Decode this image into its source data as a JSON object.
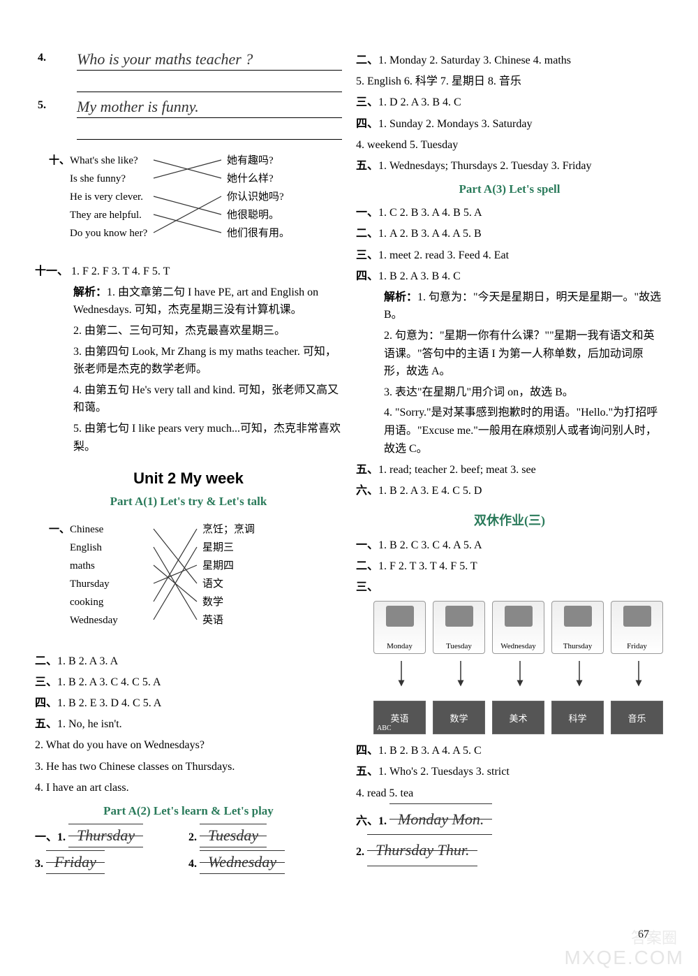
{
  "leftCol": {
    "q4": {
      "num": "4.",
      "text": "Who is your maths teacher ?"
    },
    "q5": {
      "num": "5.",
      "text": "My mother is funny."
    },
    "match10": {
      "prefix": "十、",
      "left": [
        "What's she like?",
        "Is she funny?",
        "He is very clever.",
        "They are helpful.",
        "Do you know her?"
      ],
      "right": [
        "她有趣吗?",
        "她什么样?",
        "你认识她吗?",
        "他很聪明。",
        "他们很有用。"
      ],
      "edges": [
        [
          0,
          1
        ],
        [
          1,
          0
        ],
        [
          2,
          3
        ],
        [
          3,
          4
        ],
        [
          4,
          2
        ]
      ]
    },
    "sec11": {
      "prefix": "十一、",
      "answers": "1. F   2. F   3. T   4. F   5. T",
      "analysisLabel": "解析：",
      "items": [
        "1. 由文章第二句 I have PE, art and English on Wednesdays. 可知，杰克星期三没有计算机课。",
        "2. 由第二、三句可知，杰克最喜欢星期三。",
        "3. 由第四句 Look, Mr Zhang is my maths teacher. 可知，张老师是杰克的数学老师。",
        "4. 由第五句 He's very tall and kind. 可知，张老师又高又和蔼。",
        "5. 由第七句 I like pears very much...可知，杰克非常喜欢梨。"
      ]
    },
    "unit2": {
      "title": "Unit 2   My week"
    },
    "partA1": {
      "title": "Part A(1)   Let's try & Let's talk",
      "match1": {
        "prefix": "一、",
        "left": [
          "Chinese",
          "English",
          "maths",
          "Thursday",
          "cooking",
          "Wednesday"
        ],
        "right": [
          "烹饪；烹调",
          "星期三",
          "星期四",
          "语文",
          "数学",
          "英语"
        ],
        "edges": [
          [
            0,
            3
          ],
          [
            1,
            5
          ],
          [
            2,
            4
          ],
          [
            3,
            2
          ],
          [
            4,
            0
          ],
          [
            5,
            1
          ]
        ]
      },
      "sec2": {
        "prefix": "二、",
        "answers": "1. B   2. A   3. A"
      },
      "sec3": {
        "prefix": "三、",
        "answers": "1. B   2. A   3. C   4. C   5. A"
      },
      "sec4": {
        "prefix": "四、",
        "answers": "1. B   2. E   3. D   4. C   5. A"
      },
      "sec5": {
        "prefix": "五、",
        "items": [
          "1. No, he isn't.",
          "2. What do you have on Wednesdays?",
          "3. He has two Chinese classes on Thursdays.",
          "4. I have an art class."
        ]
      }
    },
    "partA2": {
      "title": "Part A(2)   Let's learn & Let's play",
      "sec1": {
        "prefix": "一、",
        "fills": [
          {
            "num": "1.",
            "text": "Thursday"
          },
          {
            "num": "2.",
            "text": "Tuesday"
          },
          {
            "num": "3.",
            "text": "Friday"
          },
          {
            "num": "4.",
            "text": "Wednesday"
          }
        ]
      }
    }
  },
  "rightCol": {
    "sec2": {
      "prefix": "二、",
      "answers": "1. Monday   2. Saturday   3. Chinese   4. maths",
      "line2": "5. English   6. 科学   7. 星期日   8. 音乐"
    },
    "sec3": {
      "prefix": "三、",
      "answers": "1. D   2. A   3. B   4. C"
    },
    "sec4": {
      "prefix": "四、",
      "answers": "1. Sunday   2. Mondays   3. Saturday",
      "line2": "4. weekend   5. Tuesday"
    },
    "sec5": {
      "prefix": "五、",
      "answers": "1. Wednesdays; Thursdays   2. Tuesday   3. Friday"
    },
    "partA3": {
      "title": "Part A(3)   Let's spell",
      "s1": {
        "prefix": "一、",
        "answers": "1. C   2. B   3. A   4. B   5. A"
      },
      "s2": {
        "prefix": "二、",
        "answers": "1. A   2. B   3. A   4. A   5. B"
      },
      "s3": {
        "prefix": "三、",
        "answers": "1. meet   2. read   3. Feed   4. Eat"
      },
      "s4": {
        "prefix": "四、",
        "answers": "1. B   2. A   3. B   4. C",
        "analysisLabel": "解析：",
        "items": [
          "1. 句意为：\"今天是星期日，明天是星期一。\"故选 B。",
          "2. 句意为：\"星期一你有什么课？\"\"星期一我有语文和英语课。\"答句中的主语 I 为第一人称单数，后加动词原形，故选 A。",
          "3. 表达\"在星期几\"用介词 on，故选 B。",
          "4. \"Sorry.\"是对某事感到抱歉时的用语。\"Hello.\"为打招呼用语。\"Excuse me.\"一般用在麻烦别人或者询问别人时，故选 C。"
        ]
      },
      "s5": {
        "prefix": "五、",
        "answers": "1. read; teacher   2. beef; meat   3. see"
      },
      "s6": {
        "prefix": "六、",
        "answers": "1. B   2. A   3. E   4. C   5. D"
      }
    },
    "homework3": {
      "title": "双休作业(三)",
      "s1": {
        "prefix": "一、",
        "answers": "1. B   2. C   3. C   4. A   5. A"
      },
      "s2": {
        "prefix": "二、",
        "answers": "1. F   2. T   3. T   4. F   5. T"
      },
      "s3": {
        "prefix": "三、",
        "days": [
          "Monday",
          "Tuesday",
          "Wednesday",
          "Thursday",
          "Friday"
        ],
        "subjects": [
          "英语",
          "数学",
          "美术",
          "科学",
          "音乐"
        ],
        "abcLabel": "ABC"
      },
      "s4": {
        "prefix": "四、",
        "answers": "1. B   2. B   3. A   4. A   5. C"
      },
      "s5": {
        "prefix": "五、",
        "answers": "1. Who's   2. Tuesdays   3. strict",
        "line2": "4. read   5. tea"
      },
      "s6": {
        "prefix": "六、",
        "fills": [
          {
            "num": "1.",
            "text": "Monday  Mon."
          },
          {
            "num": "2.",
            "text": "Thursday  Thur."
          }
        ]
      }
    }
  },
  "pageNum": "67",
  "watermark": "MXQE.COM",
  "watermark2": "答案圈"
}
